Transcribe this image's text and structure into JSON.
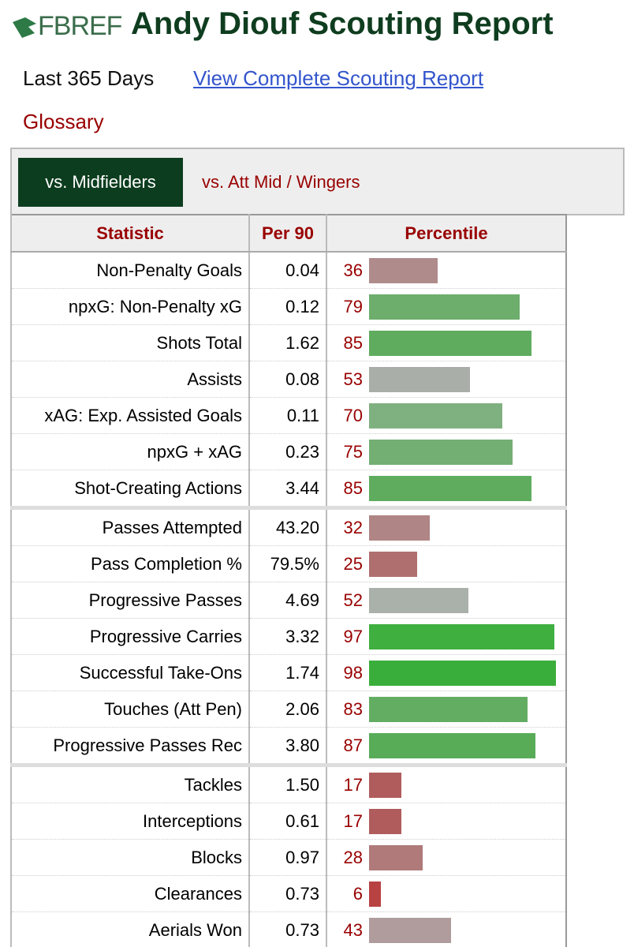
{
  "header": {
    "logo": "FBREF",
    "title": "Andy Diouf Scouting Report",
    "period": "Last 365 Days",
    "link": "View Complete Scouting Report",
    "glossary": "Glossary"
  },
  "tabs": [
    "vs. Midfielders",
    "vs. Att Mid / Wingers"
  ],
  "table": {
    "columns": [
      "Statistic",
      "Per 90",
      "Percentile"
    ],
    "groups": [
      [
        {
          "stat": "Non-Penalty Goals",
          "per90": "0.04",
          "percentile": 36,
          "color": "#b08b8b"
        },
        {
          "stat": "npxG: Non-Penalty xG",
          "per90": "0.12",
          "percentile": 79,
          "color": "#6dae6d"
        },
        {
          "stat": "Shots Total",
          "per90": "1.62",
          "percentile": 85,
          "color": "#5fac5f"
        },
        {
          "stat": "Assists",
          "per90": "0.08",
          "percentile": 53,
          "color": "#a9aea9"
        },
        {
          "stat": "xAG: Exp. Assisted Goals",
          "per90": "0.11",
          "percentile": 70,
          "color": "#7fb07f"
        },
        {
          "stat": "npxG + xAG",
          "per90": "0.23",
          "percentile": 75,
          "color": "#73af73"
        },
        {
          "stat": "Shot-Creating Actions",
          "per90": "3.44",
          "percentile": 85,
          "color": "#5fac5f"
        }
      ],
      [
        {
          "stat": "Passes Attempted",
          "per90": "43.20",
          "percentile": 32,
          "color": "#b08585"
        },
        {
          "stat": "Pass Completion %",
          "per90": "79.5%",
          "percentile": 25,
          "color": "#b06f6f"
        },
        {
          "stat": "Progressive Passes",
          "per90": "4.69",
          "percentile": 52,
          "color": "#aab0aa"
        },
        {
          "stat": "Progressive Carries",
          "per90": "3.32",
          "percentile": 97,
          "color": "#3faf3f"
        },
        {
          "stat": "Successful Take-Ons",
          "per90": "1.74",
          "percentile": 98,
          "color": "#3aae3a"
        },
        {
          "stat": "Touches (Att Pen)",
          "per90": "2.06",
          "percentile": 83,
          "color": "#63ad63"
        },
        {
          "stat": "Progressive Passes Rec",
          "per90": "3.80",
          "percentile": 87,
          "color": "#58ac58"
        }
      ],
      [
        {
          "stat": "Tackles",
          "per90": "1.50",
          "percentile": 17,
          "color": "#b05c5c"
        },
        {
          "stat": "Interceptions",
          "per90": "0.61",
          "percentile": 17,
          "color": "#b05c5c"
        },
        {
          "stat": "Blocks",
          "per90": "0.97",
          "percentile": 28,
          "color": "#b07a7a"
        },
        {
          "stat": "Clearances",
          "per90": "0.73",
          "percentile": 6,
          "color": "#b84242"
        },
        {
          "stat": "Aerials Won",
          "per90": "0.73",
          "percentile": 43,
          "color": "#b09c9c"
        }
      ]
    ]
  }
}
